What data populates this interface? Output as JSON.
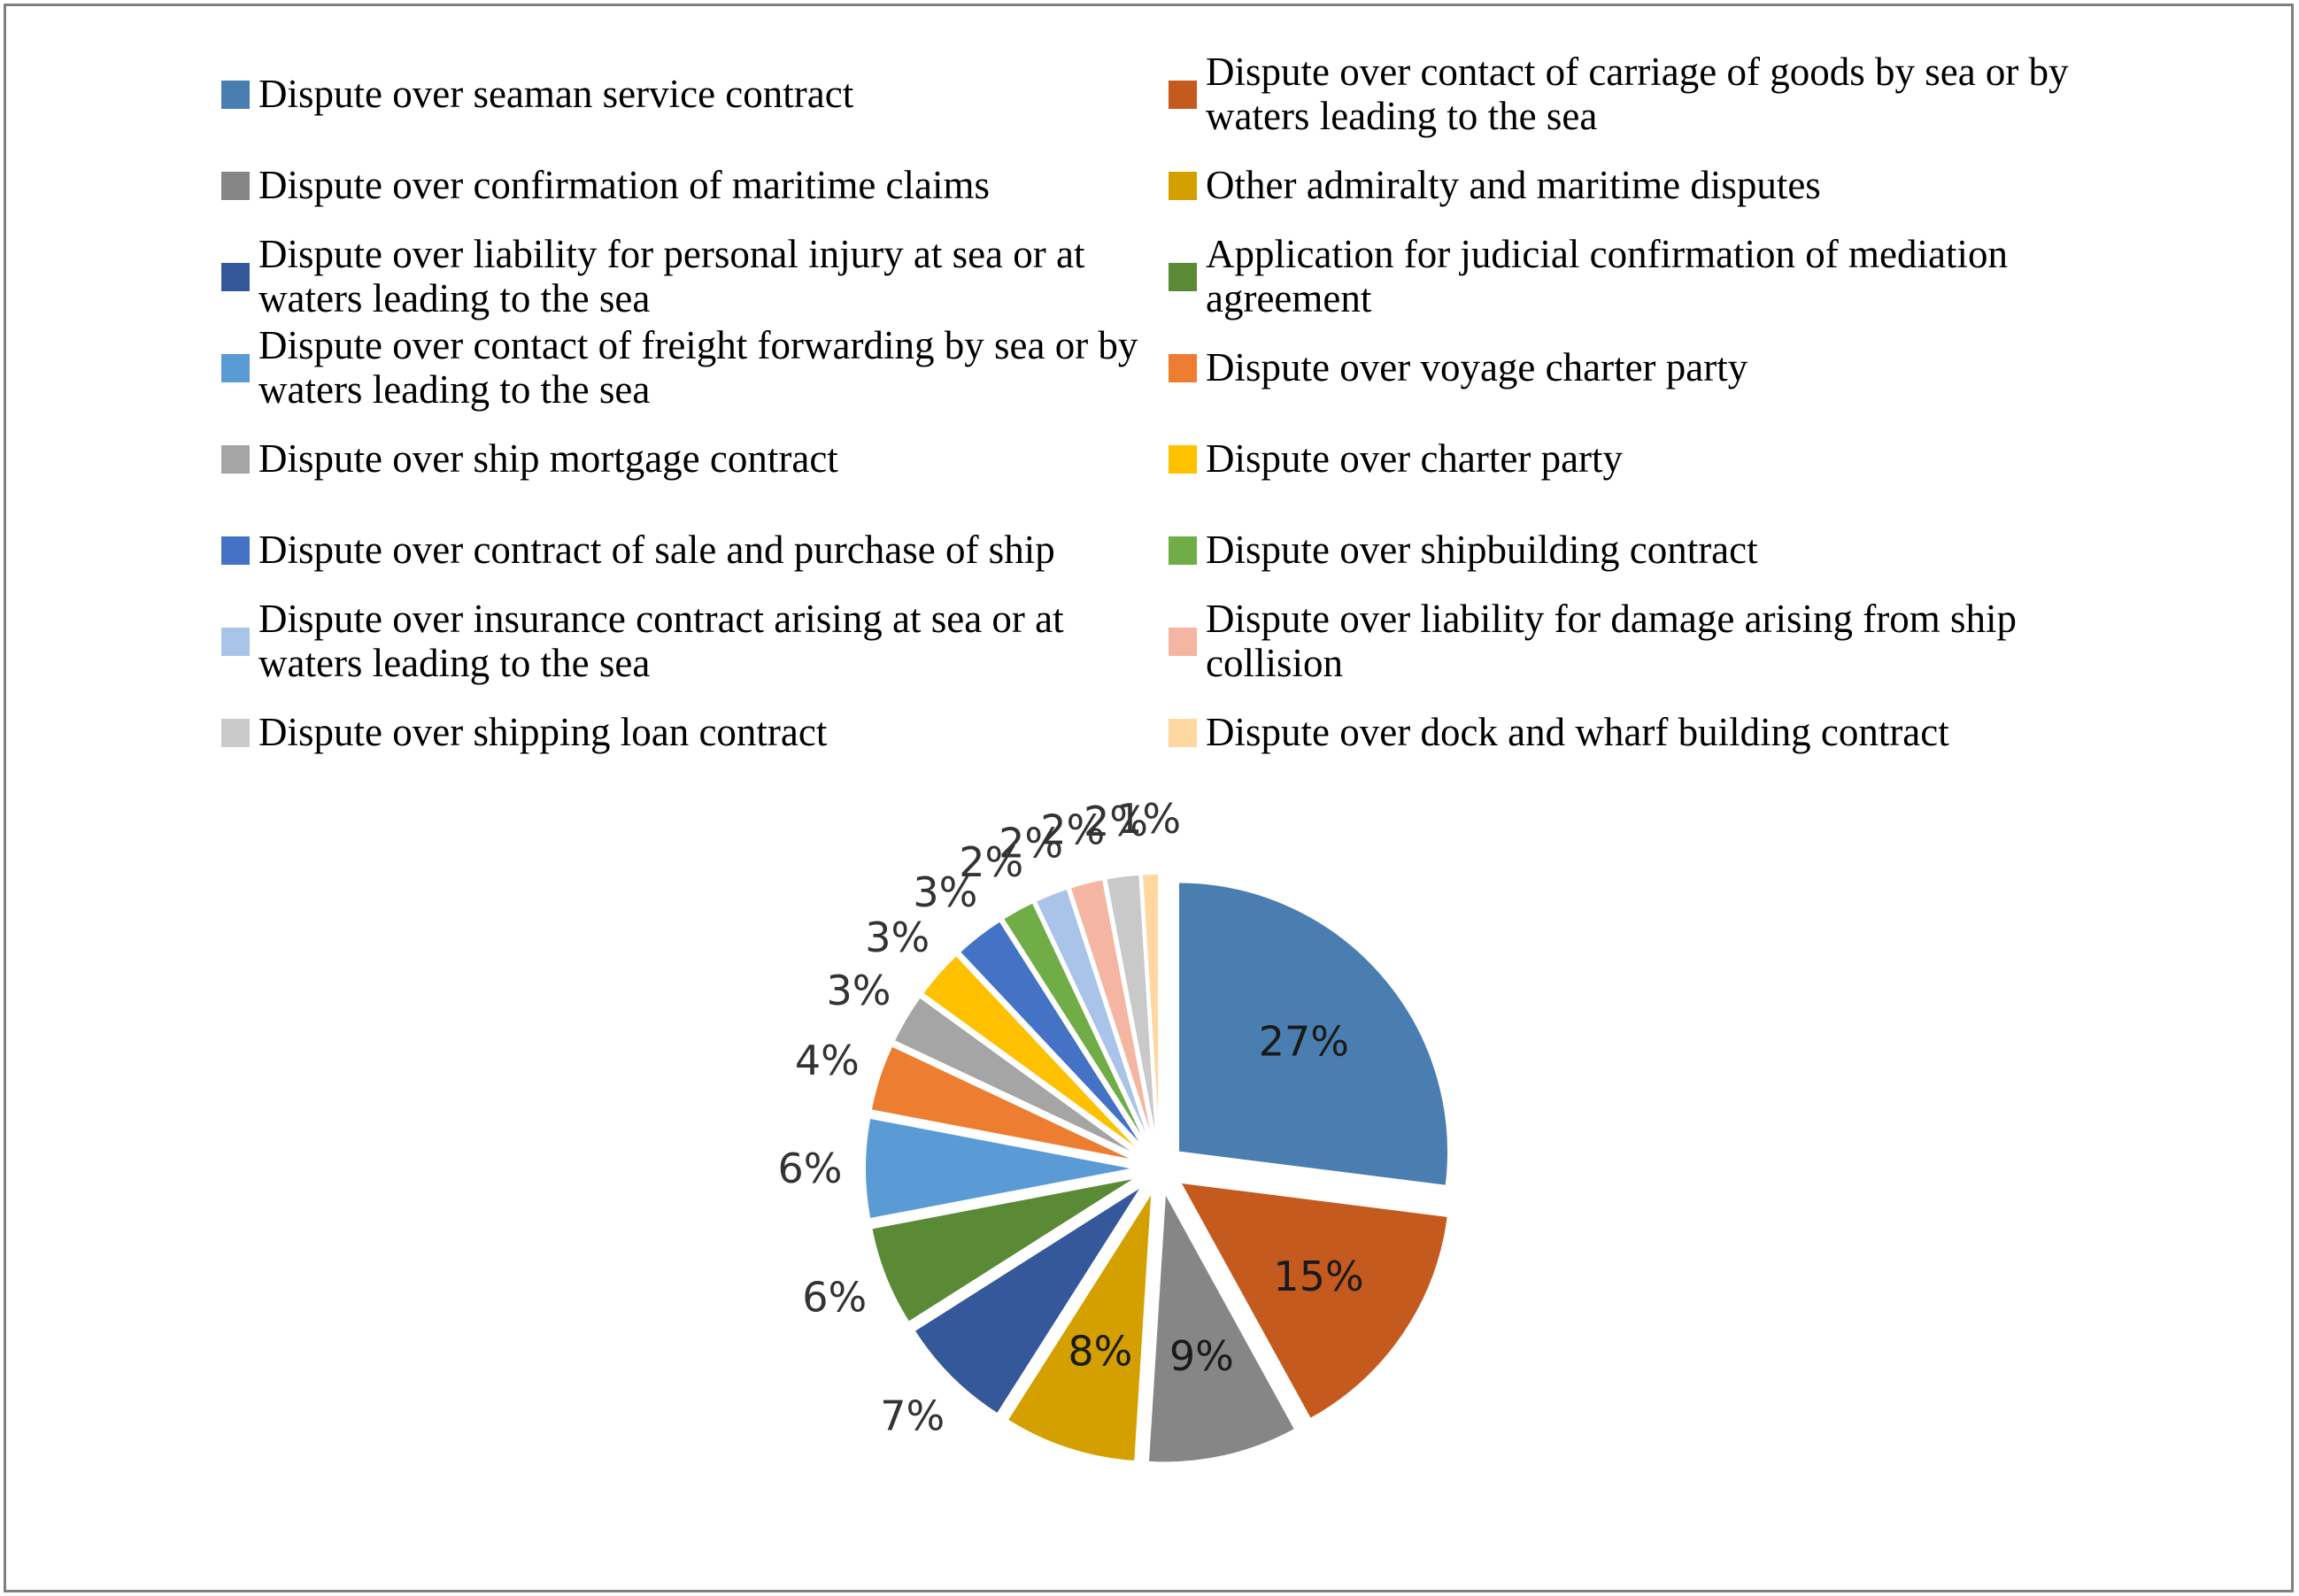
{
  "chart_data": {
    "type": "pie",
    "title": "",
    "legend_placement": "top",
    "exploded": true,
    "slices": [
      {
        "label": "Dispute over seaman service contract",
        "value": 27,
        "display": "27%",
        "color": "#4a7eb0"
      },
      {
        "label": "Dispute over contact of carriage of goods by sea or by waters leading to the sea",
        "value": 15,
        "display": "15%",
        "color": "#c55a1f"
      },
      {
        "label": "Dispute over confirmation of maritime claims",
        "value": 9,
        "display": "9%",
        "color": "#868686"
      },
      {
        "label": "Other admiralty and maritime disputes",
        "value": 8,
        "display": "8%",
        "color": "#d4a000"
      },
      {
        "label": "Dispute over liability for personal injury at sea or at waters leading to the sea",
        "value": 7,
        "display": "7%",
        "color": "#35589a"
      },
      {
        "label": "Application for judicial confirmation of mediation agreement",
        "value": 6,
        "display": "6%",
        "color": "#5a8a35"
      },
      {
        "label": "Dispute over contact of freight forwarding by sea or by waters leading to the sea",
        "value": 6,
        "display": "6%",
        "color": "#5b9bd5"
      },
      {
        "label": "Dispute over voyage charter party",
        "value": 4,
        "display": "4%",
        "color": "#ed7d31"
      },
      {
        "label": "Dispute over ship mortgage contract",
        "value": 3,
        "display": "3%",
        "color": "#a5a5a5"
      },
      {
        "label": "Dispute over charter party",
        "value": 3,
        "display": "3%",
        "color": "#ffc000"
      },
      {
        "label": "Dispute over contract of sale and purchase of ship",
        "value": 3,
        "display": "3%",
        "color": "#4472c4"
      },
      {
        "label": "Dispute over shipbuilding contract",
        "value": 2,
        "display": "2%",
        "color": "#70ad47"
      },
      {
        "label": "Dispute over insurance contract arising at sea or at waters leading to the sea",
        "value": 2,
        "display": "2%",
        "color": "#a9c4e8"
      },
      {
        "label": "Dispute over liability for damage arising from ship collision",
        "value": 2,
        "display": "2%",
        "color": "#f4b6a2"
      },
      {
        "label": "Dispute over shipping loan contract",
        "value": 2,
        "display": "2%",
        "color": "#c9c9c9"
      },
      {
        "label": "Dispute over dock and wharf building contract",
        "value": 1,
        "display": "1%",
        "color": "#ffd7a0"
      }
    ]
  }
}
